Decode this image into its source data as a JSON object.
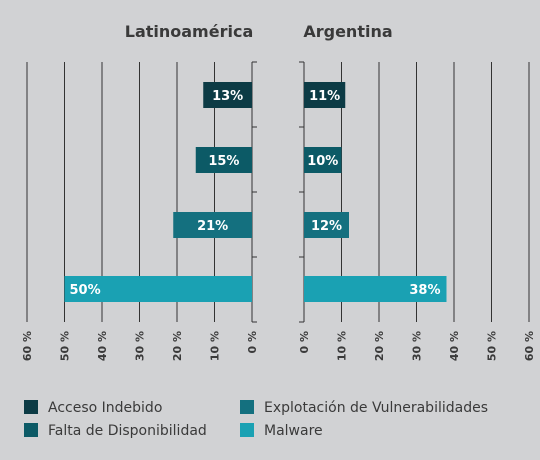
{
  "chart_data": [
    {
      "type": "bar",
      "orientation": "horizontal",
      "direction": "right-to-left",
      "title": "Latinoamérica",
      "categories": [
        "Acceso Indebido",
        "Falta de Disponibilidad",
        "Explotación de Vulnerabilidades",
        "Malware"
      ],
      "values": [
        13,
        15,
        21,
        50
      ],
      "value_labels": [
        "13%",
        "15%",
        "21%",
        "50%"
      ],
      "xlim": [
        0,
        60
      ],
      "ticks": [
        "0 %",
        "10 %",
        "20 %",
        "30 %",
        "40 %",
        "50 %",
        "60 %"
      ],
      "grid": true
    },
    {
      "type": "bar",
      "orientation": "horizontal",
      "direction": "left-to-right",
      "title": "Argentina",
      "categories": [
        "Acceso Indebido",
        "Falta de Disponibilidad",
        "Explotación de Vulnerabilidades",
        "Malware"
      ],
      "values": [
        11,
        10,
        12,
        38
      ],
      "value_labels": [
        "11%",
        "10%",
        "12%",
        "38%"
      ],
      "xlim": [
        0,
        60
      ],
      "ticks": [
        "0 %",
        "10 %",
        "20 %",
        "30 %",
        "40 %",
        "50 %",
        "60 %"
      ],
      "grid": true
    }
  ],
  "legend": {
    "placement": "bottom",
    "items": [
      {
        "label": "Acceso Indebido",
        "color": "#0c3b45"
      },
      {
        "label": "Explotación de Vulnerabilidades",
        "color": "#14707f"
      },
      {
        "label": "Falta de Disponibilidad",
        "color": "#0c5a66"
      },
      {
        "label": "Malware",
        "color": "#1aa1b3"
      }
    ]
  },
  "colors": {
    "background": "#d1d2d4",
    "text": "#3a3a3a",
    "grid": "#333333",
    "bar_text": "#ffffff"
  }
}
